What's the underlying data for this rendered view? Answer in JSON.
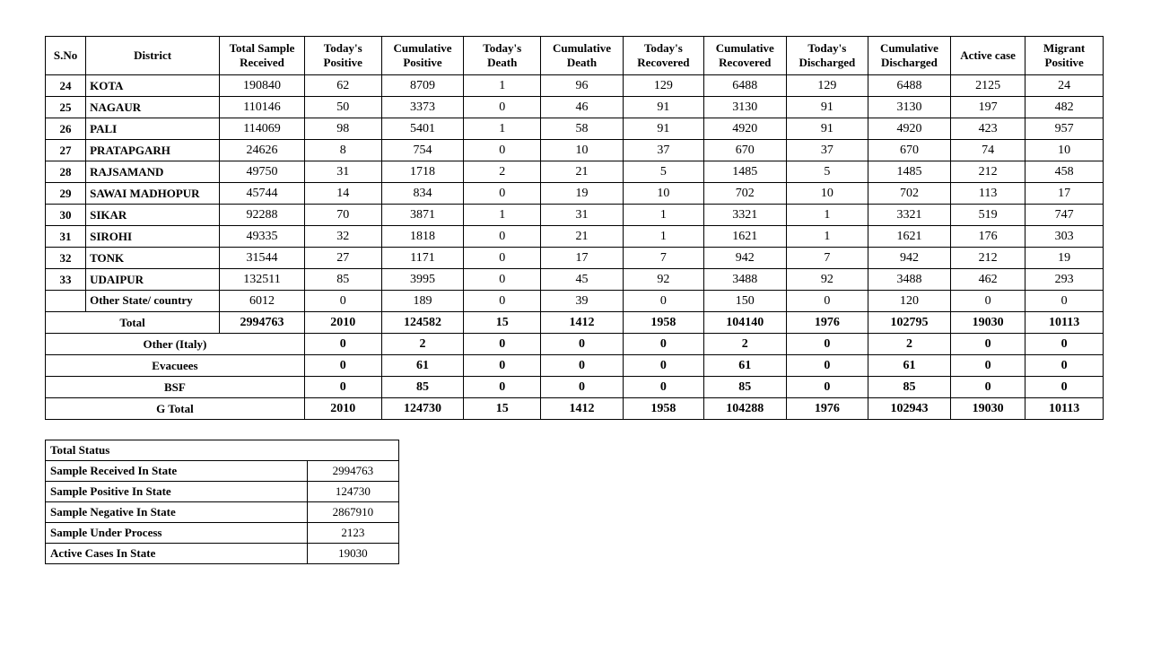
{
  "columns": [
    "S.No",
    "District",
    "Total Sample Received",
    "Today's Positive",
    "Cumulative Positive",
    "Today's Death",
    "Cumulative Death",
    "Today's Recovered",
    "Cumulative Recovered",
    "Today's Discharged",
    "Cumulative Discharged",
    "Active case",
    "Migrant Positive"
  ],
  "rows": [
    {
      "sno": "24",
      "district": "KOTA",
      "cells": [
        "190840",
        "62",
        "8709",
        "1",
        "96",
        "129",
        "6488",
        "129",
        "6488",
        "2125",
        "24"
      ]
    },
    {
      "sno": "25",
      "district": "NAGAUR",
      "cells": [
        "110146",
        "50",
        "3373",
        "0",
        "46",
        "91",
        "3130",
        "91",
        "3130",
        "197",
        "482"
      ]
    },
    {
      "sno": "26",
      "district": "PALI",
      "cells": [
        "114069",
        "98",
        "5401",
        "1",
        "58",
        "91",
        "4920",
        "91",
        "4920",
        "423",
        "957"
      ]
    },
    {
      "sno": "27",
      "district": "PRATAPGARH",
      "cells": [
        "24626",
        "8",
        "754",
        "0",
        "10",
        "37",
        "670",
        "37",
        "670",
        "74",
        "10"
      ]
    },
    {
      "sno": "28",
      "district": "RAJSAMAND",
      "cells": [
        "49750",
        "31",
        "1718",
        "2",
        "21",
        "5",
        "1485",
        "5",
        "1485",
        "212",
        "458"
      ]
    },
    {
      "sno": "29",
      "district": "SAWAI MADHOPUR",
      "cells": [
        "45744",
        "14",
        "834",
        "0",
        "19",
        "10",
        "702",
        "10",
        "702",
        "113",
        "17"
      ]
    },
    {
      "sno": "30",
      "district": "SIKAR",
      "cells": [
        "92288",
        "70",
        "3871",
        "1",
        "31",
        "1",
        "3321",
        "1",
        "3321",
        "519",
        "747"
      ]
    },
    {
      "sno": "31",
      "district": "SIROHI",
      "cells": [
        "49335",
        "32",
        "1818",
        "0",
        "21",
        "1",
        "1621",
        "1",
        "1621",
        "176",
        "303"
      ]
    },
    {
      "sno": "32",
      "district": "TONK",
      "cells": [
        "31544",
        "27",
        "1171",
        "0",
        "17",
        "7",
        "942",
        "7",
        "942",
        "212",
        "19"
      ]
    },
    {
      "sno": "33",
      "district": "UDAIPUR",
      "cells": [
        "132511",
        "85",
        "3995",
        "0",
        "45",
        "92",
        "3488",
        "92",
        "3488",
        "462",
        "293"
      ]
    }
  ],
  "other_state": {
    "sno": "",
    "district": "Other State/ country",
    "cells": [
      "6012",
      "0",
      "189",
      "0",
      "39",
      "0",
      "150",
      "0",
      "120",
      "0",
      "0"
    ]
  },
  "total": {
    "label": "Total",
    "cells": [
      "2994763",
      "2010",
      "124582",
      "15",
      "1412",
      "1958",
      "104140",
      "1976",
      "102795",
      "19030",
      "10113"
    ]
  },
  "summary_rows": [
    {
      "label": "Other (Italy)",
      "cells": [
        "0",
        "2",
        "0",
        "0",
        "0",
        "2",
        "0",
        "2",
        "0",
        "0"
      ]
    },
    {
      "label": "Evacuees",
      "cells": [
        "0",
        "61",
        "0",
        "0",
        "0",
        "61",
        "0",
        "61",
        "0",
        "0"
      ]
    },
    {
      "label": "BSF",
      "cells": [
        "0",
        "85",
        "0",
        "0",
        "0",
        "85",
        "0",
        "85",
        "0",
        "0"
      ]
    },
    {
      "label": "G Total",
      "cells": [
        "2010",
        "124730",
        "15",
        "1412",
        "1958",
        "104288",
        "1976",
        "102943",
        "19030",
        "10113"
      ]
    }
  ],
  "status": {
    "header": "Total Status",
    "rows": [
      {
        "label": "Sample Received In State",
        "value": "2994763"
      },
      {
        "label": "Sample Positive In State",
        "value": "124730"
      },
      {
        "label": "Sample Negative In State",
        "value": "2867910"
      },
      {
        "label": "Sample Under Process",
        "value": "2123"
      },
      {
        "label": "Active Cases In State",
        "value": "19030"
      }
    ]
  }
}
